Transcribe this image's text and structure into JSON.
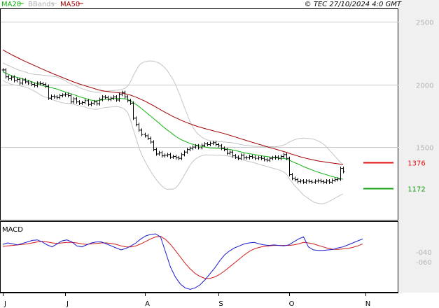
{
  "header": {
    "ma20_label": "MA20",
    "bbands_label": "BBands",
    "ma50_label": "MA50",
    "copyright": "© TEC 27/10/2024 4:0 GMT"
  },
  "colors": {
    "price": "#000000",
    "ma20": "#0fb20f",
    "ma50": "#a00000",
    "bbands": "#c4c4c4",
    "macd": "#1a1ad0",
    "signal": "#d01a1a",
    "level_high": "#e01010",
    "level_low": "#10a010",
    "grid": "#c8c8c8",
    "axis_band": "#f0f0f0"
  },
  "chart_data": [
    {
      "type": "line",
      "title": "",
      "price_axis": {
        "ticks": [
          "2500",
          "2000",
          "1500"
        ],
        "tick_values": [
          2500,
          2000,
          1500
        ],
        "ylim": [
          920,
          2600
        ]
      },
      "x_ticks": [
        "J",
        "J",
        "A",
        "S",
        "O",
        "N"
      ],
      "x_tick_index": [
        0,
        22,
        50,
        76,
        101,
        128
      ],
      "levels": [
        {
          "label": "1376",
          "value": 1376,
          "color": "#e01010"
        },
        {
          "label": "1172",
          "value": 1172,
          "color": "#10a010"
        }
      ],
      "close": [
        2115,
        2060,
        2045,
        2058,
        2030,
        2040,
        2010,
        2035,
        2020,
        2010,
        2000,
        1990,
        2010,
        2005,
        2000,
        1985,
        1890,
        1905,
        1900,
        1895,
        1910,
        1915,
        1920,
        1910,
        1860,
        1885,
        1860,
        1850,
        1855,
        1870,
        1840,
        1850,
        1860,
        1845,
        1880,
        1900,
        1895,
        1880,
        1890,
        1900,
        1875,
        1920,
        1935,
        1900,
        1870,
        1850,
        1730,
        1680,
        1635,
        1600,
        1590,
        1570,
        1540,
        1480,
        1445,
        1455,
        1430,
        1435,
        1440,
        1420,
        1425,
        1415,
        1410,
        1440,
        1460,
        1480,
        1490,
        1500,
        1510,
        1495,
        1515,
        1525,
        1520,
        1530,
        1535,
        1520,
        1510,
        1490,
        1480,
        1450,
        1460,
        1430,
        1420,
        1410,
        1435,
        1415,
        1415,
        1425,
        1420,
        1410,
        1415,
        1410,
        1400,
        1395,
        1410,
        1415,
        1420,
        1410,
        1425,
        1440,
        1410,
        1280,
        1250,
        1240,
        1225,
        1230,
        1220,
        1230,
        1225,
        1220,
        1228,
        1232,
        1225,
        1220,
        1230,
        1220,
        1235,
        1240,
        1245,
        1330,
        1305
      ],
      "ma20": [
        2100,
        2090,
        2080,
        2070,
        2063,
        2056,
        2050,
        2044,
        2038,
        2030,
        2022,
        2014,
        2006,
        1998,
        1990,
        1985,
        1980,
        1975,
        1968,
        1963,
        1955,
        1947,
        1940,
        1932,
        1926,
        1918,
        1910,
        1902,
        1895,
        1889,
        1880,
        1875,
        1871,
        1868,
        1872,
        1876,
        1880,
        1882,
        1884,
        1886,
        1888,
        1888,
        1887,
        1884,
        1880,
        1870,
        1855,
        1840,
        1823,
        1805,
        1787,
        1768,
        1750,
        1731,
        1712,
        1693,
        1673,
        1654,
        1636,
        1620,
        1602,
        1585,
        1570,
        1558,
        1548,
        1538,
        1530,
        1522,
        1515,
        1510,
        1506,
        1502,
        1498,
        1494,
        1492,
        1490,
        1489,
        1488,
        1486,
        1484,
        1481,
        1477,
        1473,
        1467,
        1461,
        1456,
        1451,
        1447,
        1443,
        1439,
        1435,
        1431,
        1428,
        1425,
        1421,
        1418,
        1415,
        1413,
        1411,
        1409,
        1405,
        1395,
        1385,
        1375,
        1366,
        1356,
        1345,
        1336,
        1327,
        1318,
        1309,
        1301,
        1294,
        1287,
        1280,
        1273,
        1266,
        1260,
        1254,
        1248,
        1243
      ],
      "ma50": [
        2275,
        2262,
        2250,
        2238,
        2226,
        2215,
        2204,
        2192,
        2182,
        2172,
        2162,
        2152,
        2142,
        2132,
        2121,
        2111,
        2101,
        2092,
        2082,
        2073,
        2064,
        2055,
        2046,
        2037,
        2028,
        2019,
        2011,
        2003,
        1996,
        1989,
        1982,
        1975,
        1968,
        1961,
        1955,
        1950,
        1946,
        1943,
        1940,
        1938,
        1935,
        1933,
        1930,
        1926,
        1921,
        1914,
        1906,
        1898,
        1888,
        1878,
        1868,
        1856,
        1844,
        1832,
        1819,
        1806,
        1793,
        1780,
        1768,
        1756,
        1744,
        1733,
        1723,
        1712,
        1703,
        1694,
        1686,
        1677,
        1670,
        1662,
        1656,
        1649,
        1643,
        1637,
        1631,
        1625,
        1620,
        1614,
        1608,
        1601,
        1594,
        1587,
        1580,
        1573,
        1566,
        1559,
        1551,
        1545,
        1538,
        1531,
        1524,
        1518,
        1511,
        1504,
        1497,
        1491,
        1484,
        1478,
        1471,
        1465,
        1458,
        1450,
        1443,
        1436,
        1429,
        1422,
        1416,
        1410,
        1405,
        1400,
        1395,
        1390,
        1386,
        1383,
        1379,
        1376,
        1373,
        1370,
        1367,
        1364,
        1362
      ],
      "bb_upper": [
        2170,
        2160,
        2150,
        2140,
        2130,
        2120,
        2112,
        2105,
        2098,
        2090,
        2085,
        2080,
        2078,
        2076,
        2074,
        2072,
        2068,
        2066,
        2063,
        2060,
        2050,
        2040,
        2030,
        2015,
        2005,
        1995,
        1985,
        1975,
        1965,
        1958,
        1950,
        1945,
        1940,
        1935,
        1938,
        1942,
        1945,
        1947,
        1949,
        1951,
        1953,
        1956,
        1960,
        1968,
        1985,
        2020,
        2070,
        2110,
        2150,
        2170,
        2180,
        2185,
        2187,
        2185,
        2180,
        2170,
        2155,
        2135,
        2110,
        2075,
        2040,
        1995,
        1940,
        1880,
        1820,
        1760,
        1705,
        1660,
        1625,
        1600,
        1582,
        1568,
        1558,
        1552,
        1548,
        1546,
        1544,
        1542,
        1540,
        1538,
        1536,
        1534,
        1530,
        1525,
        1520,
        1516,
        1513,
        1510,
        1508,
        1506,
        1505,
        1504,
        1503,
        1503,
        1503,
        1503,
        1503,
        1505,
        1510,
        1515,
        1525,
        1540,
        1550,
        1560,
        1565,
        1570,
        1572,
        1570,
        1568,
        1565,
        1560,
        1550,
        1540,
        1525,
        1505,
        1480,
        1455,
        1430,
        1405,
        1380,
        1360
      ],
      "bb_lower": [
        2030,
        2020,
        2010,
        2000,
        1996,
        1992,
        1988,
        1983,
        1978,
        1970,
        1960,
        1948,
        1935,
        1920,
        1906,
        1898,
        1892,
        1884,
        1873,
        1866,
        1860,
        1854,
        1850,
        1849,
        1847,
        1841,
        1835,
        1829,
        1825,
        1820,
        1810,
        1805,
        1802,
        1800,
        1806,
        1810,
        1815,
        1817,
        1819,
        1821,
        1823,
        1820,
        1814,
        1800,
        1775,
        1720,
        1640,
        1570,
        1496,
        1440,
        1394,
        1351,
        1313,
        1277,
        1244,
        1216,
        1191,
        1173,
        1162,
        1165,
        1164,
        1175,
        1200,
        1236,
        1276,
        1316,
        1355,
        1384,
        1405,
        1420,
        1430,
        1436,
        1438,
        1436,
        1436,
        1434,
        1434,
        1434,
        1432,
        1430,
        1426,
        1420,
        1416,
        1409,
        1402,
        1396,
        1389,
        1384,
        1378,
        1372,
        1365,
        1358,
        1353,
        1347,
        1339,
        1333,
        1327,
        1321,
        1312,
        1303,
        1285,
        1250,
        1220,
        1190,
        1167,
        1142,
        1118,
        1102,
        1086,
        1071,
        1058,
        1052,
        1048,
        1049,
        1055,
        1066,
        1077,
        1090,
        1103,
        1116,
        1126
      ]
    },
    {
      "type": "line",
      "title": "MACD",
      "ticks": [
        "-040",
        "-060"
      ],
      "tick_values": [
        -40,
        -60
      ],
      "ylim": [
        -120,
        20
      ],
      "series_colors": {
        "macd": "#1a1ad0",
        "signal": "#d01a1a"
      },
      "macd": [
        -25,
        -22,
        -24,
        -26,
        -23,
        -20,
        -17,
        -16,
        -20,
        -26,
        -30,
        -24,
        -18,
        -16,
        -20,
        -28,
        -30,
        -26,
        -22,
        -20,
        -20,
        -24,
        -28,
        -32,
        -36,
        -33,
        -28,
        -22,
        -14,
        -8,
        -5,
        -4,
        -10,
        -40,
        -70,
        -90,
        -104,
        -112,
        -115,
        -112,
        -106,
        -96,
        -84,
        -72,
        -58,
        -46,
        -38,
        -32,
        -28,
        -24,
        -22,
        -21,
        -24,
        -26,
        -27,
        -26,
        -27,
        -28,
        -26,
        -20,
        -14,
        -10,
        -30,
        -36,
        -37,
        -37,
        -36,
        -35,
        -32,
        -30,
        -26,
        -22,
        -18,
        -14
      ],
      "signal": [
        -29,
        -28,
        -27,
        -26,
        -25,
        -24,
        -22,
        -20,
        -19,
        -20,
        -22,
        -23,
        -22,
        -21,
        -21,
        -22,
        -24,
        -25,
        -24,
        -23,
        -22,
        -22,
        -23,
        -25,
        -28,
        -30,
        -30,
        -28,
        -24,
        -19,
        -14,
        -10,
        -9,
        -15,
        -25,
        -37,
        -50,
        -63,
        -74,
        -83,
        -89,
        -93,
        -93,
        -90,
        -85,
        -78,
        -70,
        -62,
        -54,
        -46,
        -39,
        -34,
        -31,
        -29,
        -28,
        -27,
        -27,
        -27,
        -27,
        -26,
        -24,
        -21,
        -22,
        -24,
        -27,
        -30,
        -33,
        -35,
        -35,
        -34,
        -33,
        -31,
        -28,
        -24
      ]
    }
  ]
}
